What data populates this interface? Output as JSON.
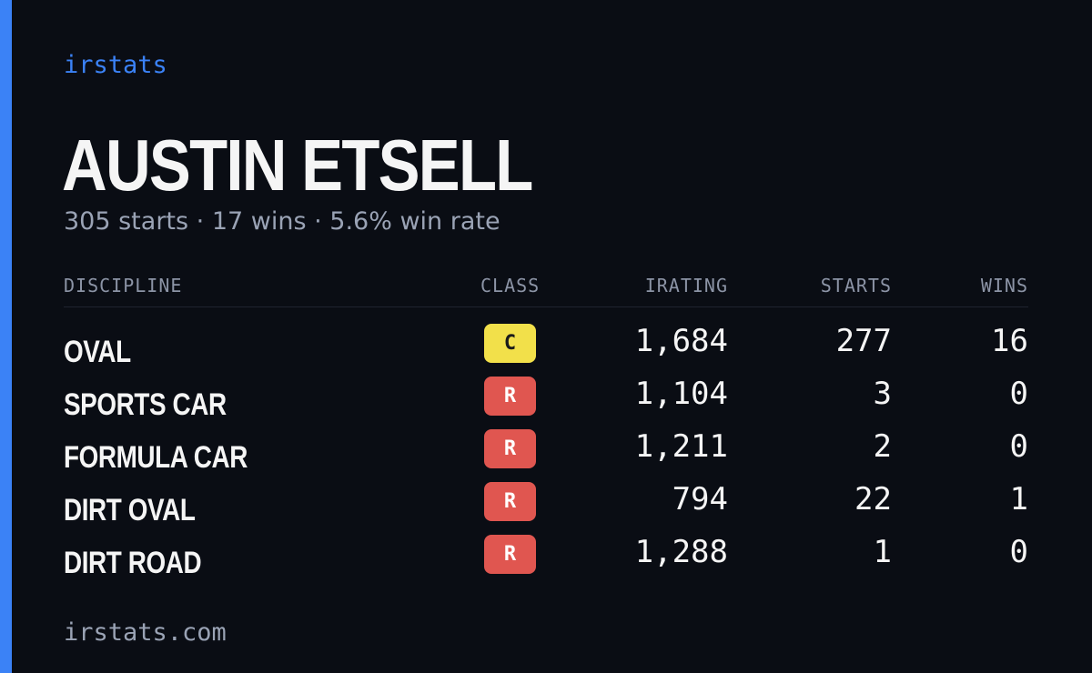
{
  "brand": "irstats",
  "driver": {
    "name": "AUSTIN ETSELL",
    "summary": "305 starts · 17 wins · 5.6% win rate"
  },
  "colors": {
    "accent": "#3b82f6",
    "background": "#0a0d14",
    "class_C": "#f2e04a",
    "class_R": "#e05650"
  },
  "table": {
    "headers": {
      "discipline": "DISCIPLINE",
      "class": "CLASS",
      "irating": "IRATING",
      "starts": "STARTS",
      "wins": "WINS"
    },
    "rows": [
      {
        "discipline": "OVAL",
        "class": "C",
        "irating": "1,684",
        "starts": "277",
        "wins": "16"
      },
      {
        "discipline": "SPORTS CAR",
        "class": "R",
        "irating": "1,104",
        "starts": "3",
        "wins": "0"
      },
      {
        "discipline": "FORMULA CAR",
        "class": "R",
        "irating": "1,211",
        "starts": "2",
        "wins": "0"
      },
      {
        "discipline": "DIRT OVAL",
        "class": "R",
        "irating": "794",
        "starts": "22",
        "wins": "1"
      },
      {
        "discipline": "DIRT ROAD",
        "class": "R",
        "irating": "1,288",
        "starts": "1",
        "wins": "0"
      }
    ]
  },
  "footer": "irstats.com"
}
